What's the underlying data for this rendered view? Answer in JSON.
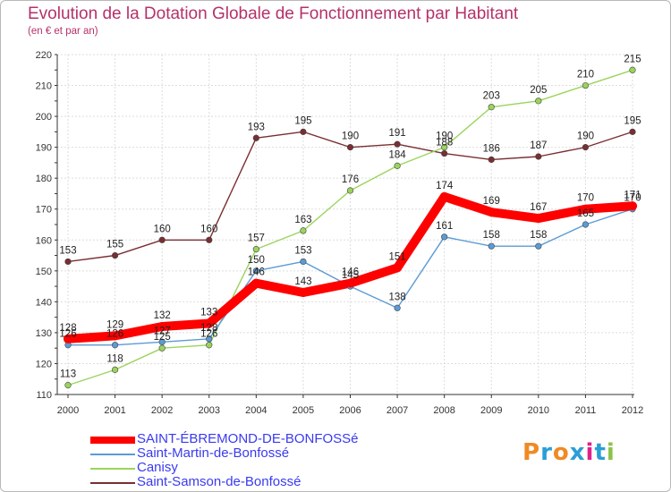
{
  "title": "Evolution de la Dotation Globale de Fonctionnement par Habitant",
  "subtitle": "(en € et par an)",
  "logo": {
    "text": "Proxiti",
    "colors": [
      "#f08a24",
      "#2a9fd6",
      "#f08a24",
      "#2a9fd6",
      "#e0208a",
      "#2a9fd6",
      "#8bc34a"
    ]
  },
  "chart_data": {
    "type": "line",
    "title": "Evolution de la Dotation Globale de Fonctionnement par Habitant",
    "subtitle": "(en € et par an)",
    "xlabel": "",
    "ylabel": "",
    "categories": [
      "2000",
      "2001",
      "2002",
      "2003",
      "2004",
      "2005",
      "2006",
      "2007",
      "2008",
      "2009",
      "2010",
      "2011",
      "2012"
    ],
    "ylim": [
      110,
      220
    ],
    "yticks": [
      110,
      120,
      130,
      140,
      150,
      160,
      170,
      180,
      190,
      200,
      210,
      220
    ],
    "grid": true,
    "legend_position": "bottom-left",
    "series": [
      {
        "name": "SAINT-ÉBREMOND-DE-BONFOSSé",
        "color": "#ff0000",
        "emphasis": true,
        "values": [
          128,
          129,
          132,
          133,
          146,
          143,
          146,
          151,
          174,
          169,
          167,
          170,
          171
        ]
      },
      {
        "name": "Saint-Martin-de-Bonfossé",
        "color": "#5b9bd5",
        "emphasis": false,
        "values": [
          126,
          126,
          127,
          128,
          150,
          153,
          145,
          138,
          161,
          158,
          158,
          165,
          170
        ]
      },
      {
        "name": "Canisy",
        "color": "#9ad45c",
        "emphasis": false,
        "values": [
          113,
          118,
          125,
          126,
          157,
          163,
          176,
          184,
          190,
          203,
          205,
          210,
          215
        ]
      },
      {
        "name": "Saint-Samson-de-Bonfossé",
        "color": "#7a2e32",
        "emphasis": false,
        "values": [
          153,
          155,
          160,
          160,
          193,
          195,
          190,
          191,
          188,
          186,
          187,
          190,
          195
        ]
      }
    ]
  }
}
